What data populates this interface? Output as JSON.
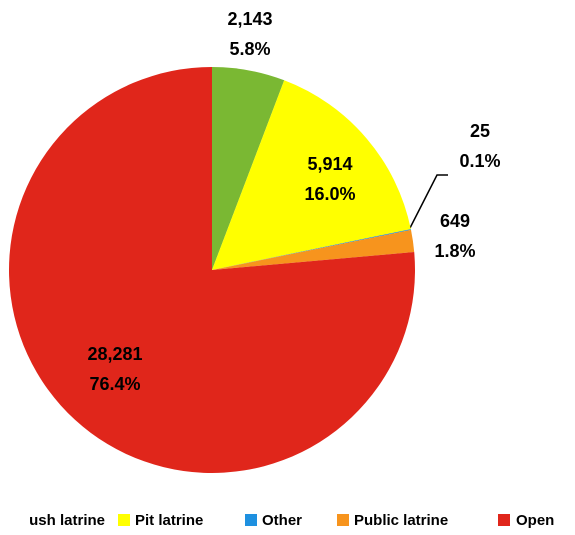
{
  "chart_data": {
    "type": "pie",
    "series": [
      {
        "name": "ush latrine",
        "color": "#7ab833"
      },
      {
        "name": "Pit latrine",
        "color": "#ffff00"
      },
      {
        "name": "Other",
        "color": "#1e90e0"
      },
      {
        "name": "Public latrine",
        "color": "#f7941d"
      },
      {
        "name": "Open",
        "color": "#e0261b"
      }
    ],
    "values": [
      2143,
      5914,
      25,
      649,
      28281
    ],
    "value_labels": [
      "2,143",
      "5,914",
      "25",
      "649",
      "28,281"
    ],
    "percent_labels": [
      "5.8%",
      "16.0%",
      "0.1%",
      "1.8%",
      "76.4%"
    ],
    "legend": "bottom"
  }
}
